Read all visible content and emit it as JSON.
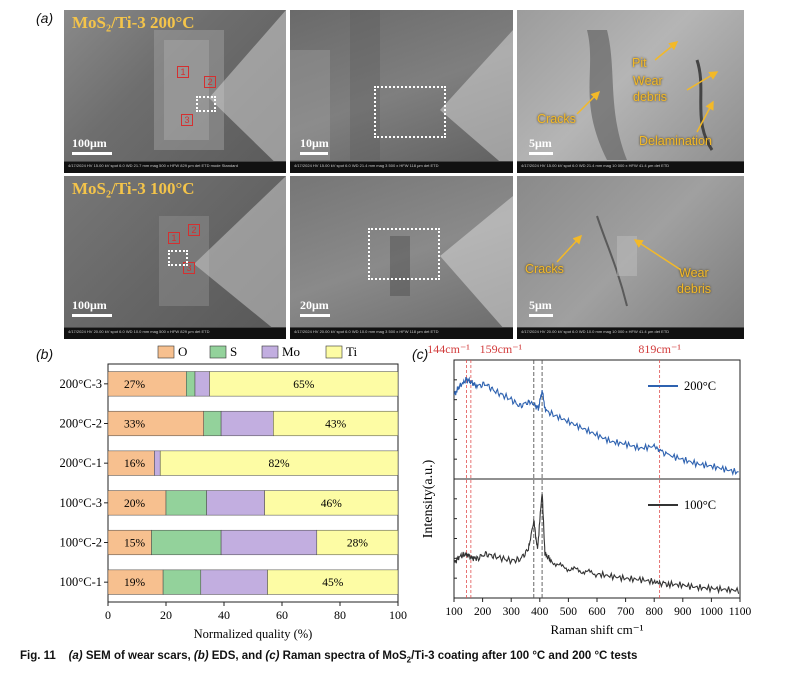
{
  "panel_a": {
    "label": "(a)",
    "row1_title": "MoS₂/Ti-3 200°C",
    "row2_title": "MoS₂/Ti-3 100°C",
    "scale_100": "100μm",
    "scale_10": "10μm",
    "scale_20": "20μm",
    "scale_5": "5μm",
    "annot_pit": "Pit",
    "annot_wear1": "Wear",
    "annot_debris1": "debris",
    "annot_cracks1": "Cracks",
    "annot_delam": "Delamination",
    "annot_cracks2": "Cracks",
    "annot_wear2": "Wear",
    "annot_debris2": "debris",
    "box1": "1",
    "box2": "2",
    "box3": "3",
    "infobar_r1a": "4/17/2024  HV 15.00 kV  spot 6.0  WD 21.7 mm  mag 500 x  HFW 829 μm  det ETD  mode Standard",
    "infobar_r1b": "4/17/2024  HV 15.00 kV  spot 6.0  WD 21.4 mm  mag 3 500 x  HFW 118 μm  det ETD",
    "infobar_r1c": "4/17/2024  HV 15.00 kV  spot 6.0  WD 21.4 mm  mag 10 000 x  HFW 41.4 μm  det ETD",
    "infobar_r2a": "4/17/2024  HV 20.00 kV  spot 6.0  WD 10.0 mm  mag 500 x  HFW 829 μm  det ETD",
    "infobar_r2b": "4/17/2024  HV 20.00 kV  spot 6.0  WD 10.0 mm  mag 3 500 x  HFW 118 μm  det ETD",
    "infobar_r2c": "4/17/2024  HV 20.00 kV  spot 6.0  WD 10.0 mm  mag 10 000 x  HFW 41.4 μm  det ETD"
  },
  "panel_b": {
    "label": "(b)",
    "colors": {
      "O": "#f7c08f",
      "S": "#93d29b",
      "Mo": "#c2aee0",
      "Ti": "#fdfca4"
    },
    "chart_data": {
      "type": "bar",
      "orientation": "horizontal",
      "stacked": true,
      "categories": [
        "200°C-3",
        "200°C-2",
        "200°C-1",
        "100°C-3",
        "100°C-2",
        "100°C-1"
      ],
      "series": [
        {
          "name": "O",
          "values": [
            27,
            33,
            16,
            20,
            15,
            19
          ]
        },
        {
          "name": "S",
          "values": [
            3,
            6,
            0,
            14,
            24,
            13
          ]
        },
        {
          "name": "Mo",
          "values": [
            5,
            18,
            2,
            20,
            33,
            23
          ]
        },
        {
          "name": "Ti",
          "values": [
            65,
            43,
            82,
            46,
            28,
            45
          ]
        }
      ],
      "bar_labels": [
        {
          "O": "27%",
          "Ti": "65%"
        },
        {
          "O": "33%",
          "Ti": "43%"
        },
        {
          "O": "16%",
          "Ti": "82%"
        },
        {
          "O": "20%",
          "Ti": "46%"
        },
        {
          "O": "15%",
          "Ti": "28%"
        },
        {
          "O": "19%",
          "Ti": "45%"
        }
      ],
      "xlabel": "Normalized quality  (%)",
      "xlim": [
        0,
        100
      ],
      "xticks": [
        0,
        20,
        40,
        60,
        80,
        100
      ],
      "legend": [
        "O",
        "S",
        "Mo",
        "Ti"
      ],
      "legend_position": "top"
    }
  },
  "panel_c": {
    "label": "(c)",
    "colors": {
      "s200": "#2e62b0",
      "s100": "#333333",
      "red_guides": "#e05050",
      "grey_guides": "#555555"
    },
    "chart_data": {
      "type": "line",
      "stacked_panels": true,
      "xlabel": "Raman shift cm⁻¹",
      "ylabel": "Intensity(a.u.)",
      "xlim": [
        100,
        1100
      ],
      "xticks": [
        100,
        200,
        300,
        400,
        500,
        600,
        700,
        800,
        900,
        1000,
        1100
      ],
      "peak_labels": [
        "144cm⁻¹",
        "159cm⁻¹",
        "819cm⁻¹"
      ],
      "red_guides": [
        144,
        159,
        819
      ],
      "grey_guides": [
        379,
        408
      ],
      "series": [
        {
          "name": "200°C",
          "x": [
            100,
            120,
            144,
            159,
            180,
            210,
            240,
            270,
            300,
            330,
            360,
            379,
            395,
            408,
            420,
            450,
            500,
            550,
            600,
            650,
            700,
            750,
            800,
            819,
            850,
            900,
            950,
            1000,
            1050,
            1100
          ],
          "y": [
            0.72,
            0.8,
            0.86,
            0.84,
            0.8,
            0.82,
            0.76,
            0.72,
            0.68,
            0.62,
            0.66,
            0.64,
            0.6,
            0.76,
            0.58,
            0.54,
            0.48,
            0.42,
            0.36,
            0.3,
            0.28,
            0.24,
            0.26,
            0.22,
            0.18,
            0.14,
            0.1,
            0.08,
            0.05,
            0.02
          ]
        },
        {
          "name": "100°C",
          "x": [
            100,
            120,
            144,
            159,
            180,
            210,
            240,
            270,
            300,
            330,
            360,
            379,
            392,
            408,
            418,
            440,
            480,
            520,
            560,
            600,
            650,
            700,
            750,
            800,
            819,
            850,
            900,
            950,
            1000,
            1050,
            1100
          ],
          "y": [
            0.28,
            0.34,
            0.36,
            0.33,
            0.32,
            0.36,
            0.34,
            0.32,
            0.3,
            0.31,
            0.4,
            0.66,
            0.4,
            0.92,
            0.36,
            0.3,
            0.24,
            0.22,
            0.2,
            0.18,
            0.16,
            0.14,
            0.13,
            0.11,
            0.1,
            0.09,
            0.08,
            0.06,
            0.05,
            0.04,
            0.03
          ]
        }
      ]
    }
  },
  "caption": {
    "fig": "Fig. 11",
    "a": "(a)",
    "t1": " SEM of wear scars, ",
    "b": "(b)",
    "t2": " EDS, and ",
    "c": "(c)",
    "t3": " Raman spectra of MoS",
    "sub": "2",
    "t4": "/Ti-3 coating after 100 °C and 200 °C tests"
  }
}
